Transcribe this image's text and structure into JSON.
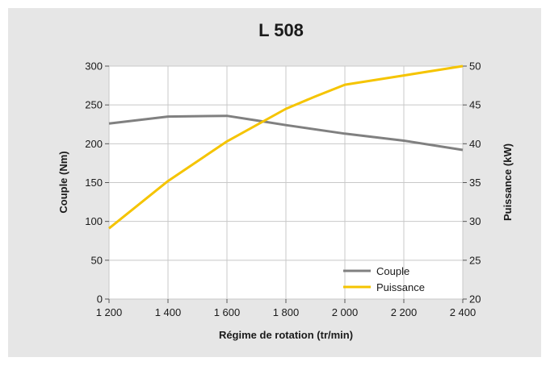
{
  "chart_data": {
    "type": "line",
    "title": "L 508",
    "xlabel": "Régime de rotation (tr/min)",
    "ylabel_left": "Couple (Nm)",
    "ylabel_right": "Puissance (kW)",
    "x": [
      1200,
      1400,
      1600,
      1800,
      2000,
      2200,
      2400
    ],
    "x_tick_labels": [
      "1 200",
      "1 400",
      "1 600",
      "1 800",
      "2 000",
      "2 200",
      "2 400"
    ],
    "xlim": [
      1200,
      2400
    ],
    "ylim_left": [
      0,
      300
    ],
    "ylim_right": [
      20,
      50
    ],
    "y_left_ticks": [
      "0",
      "50",
      "100",
      "150",
      "200",
      "250",
      "300"
    ],
    "y_right_ticks": [
      "20",
      "25",
      "30",
      "35",
      "40",
      "45",
      "50"
    ],
    "grid": true,
    "legend_position": "bottom-right",
    "series": [
      {
        "name": "Couple",
        "axis": "left",
        "color": "#808080",
        "x": [
          1200,
          1400,
          1600,
          1700,
          1800,
          2000,
          2200,
          2400
        ],
        "values": [
          226,
          235,
          236,
          230,
          224,
          213,
          204,
          192
        ]
      },
      {
        "name": "Puissance",
        "axis": "right",
        "color": "#F5C400",
        "x": [
          1200,
          1400,
          1600,
          1800,
          1900,
          2000,
          2200,
          2400
        ],
        "values": [
          29.1,
          35.2,
          40.3,
          44.5,
          46.1,
          47.6,
          48.8,
          50.0
        ]
      }
    ]
  },
  "colors": {
    "panel_background": "#E6E6E6",
    "plot_background": "#FFFFFF",
    "grid": "#C8C8C8"
  }
}
